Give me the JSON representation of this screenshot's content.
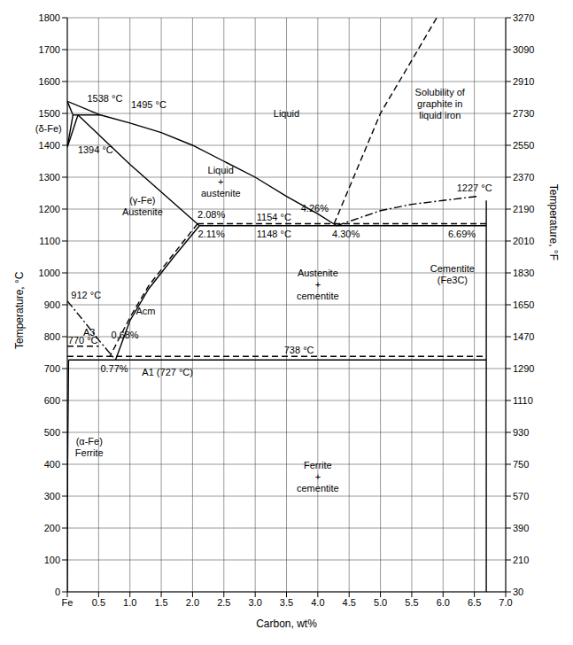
{
  "chart_data": {
    "type": "line",
    "xlabel": "Carbon, wt%",
    "ylabel": "Temperature, °C",
    "y2label": "Temperature, °F",
    "grid": true,
    "xlim": [
      0,
      7
    ],
    "xticks": [
      {
        "value": 0,
        "label": "Fe"
      },
      0.5,
      {
        "value": 1,
        "label": "1.0"
      },
      1.5,
      {
        "value": 2,
        "label": "2.0"
      },
      2.5,
      {
        "value": 3,
        "label": "3.0"
      },
      3.5,
      {
        "value": 4,
        "label": "4.0"
      },
      4.5,
      {
        "value": 5,
        "label": "5.0"
      },
      5.5,
      {
        "value": 6,
        "label": "6.0"
      },
      6.5,
      {
        "value": 7,
        "label": "7.0"
      }
    ],
    "ylim": [
      0,
      1800
    ],
    "yticks": [
      0,
      100,
      200,
      300,
      400,
      500,
      600,
      700,
      800,
      900,
      1000,
      1100,
      1200,
      1300,
      1400,
      1500,
      1600,
      1700,
      1800
    ],
    "y2lim": [
      30,
      3270
    ],
    "y2ticks": [
      30,
      210,
      390,
      570,
      750,
      930,
      1110,
      1290,
      1470,
      1650,
      1830,
      2010,
      2190,
      2370,
      2550,
      2730,
      2910,
      3090,
      3270
    ],
    "series": [
      {
        "color": "#000000",
        "line_style": "solid",
        "x": [
          0,
          0.53,
          1.0,
          1.5,
          2.0,
          2.5,
          3.0,
          3.5,
          4.0,
          4.3
        ],
        "values": [
          1538,
          1495,
          1470,
          1440,
          1400,
          1350,
          1300,
          1240,
          1185,
          1148
        ]
      },
      {
        "color": "#000000",
        "line_style": "solid",
        "x": [
          0,
          0.09
        ],
        "values": [
          1538,
          1495
        ]
      },
      {
        "color": "#000000",
        "line_style": "solid",
        "x": [
          0.09,
          0.53
        ],
        "values": [
          1495,
          1495
        ]
      },
      {
        "color": "#000000",
        "line_style": "solid",
        "x": [
          0,
          0.09
        ],
        "values": [
          1394,
          1495
        ]
      },
      {
        "color": "#000000",
        "line_style": "solid",
        "x": [
          0,
          0.17
        ],
        "values": [
          1394,
          1495
        ]
      },
      {
        "color": "#000000",
        "line_style": "solid",
        "x": [
          0.17,
          1.0,
          2.11
        ],
        "values": [
          1495,
          1340,
          1148
        ]
      },
      {
        "color": "#000000",
        "line_style": "solid",
        "x": [
          2.11,
          6.69
        ],
        "values": [
          1148,
          1148
        ]
      },
      {
        "color": "#000000",
        "line_style": "dashed",
        "x": [
          2.08,
          6.69
        ],
        "values": [
          1154,
          1154
        ]
      },
      {
        "color": "#000000",
        "line_style": "solid",
        "x": [
          2.11,
          1.7,
          1.3,
          1.0,
          0.77
        ],
        "values": [
          1148,
          1050,
          950,
          850,
          727
        ]
      },
      {
        "color": "#000000",
        "line_style": "dashed",
        "x": [
          2.08,
          1.7,
          1.3,
          1.0,
          0.68
        ],
        "values": [
          1154,
          1060,
          960,
          860,
          738
        ]
      },
      {
        "color": "#000000",
        "line_style": "dashdot",
        "x": [
          0,
          0.3,
          0.5,
          0.77
        ],
        "values": [
          912,
          840,
          790,
          727
        ]
      },
      {
        "color": "#000000",
        "line_style": "dashed",
        "x": [
          0,
          0.5
        ],
        "values": [
          770,
          770
        ]
      },
      {
        "color": "#000000",
        "line_style": "solid",
        "x": [
          0.02,
          6.69
        ],
        "values": [
          727,
          727
        ]
      },
      {
        "color": "#000000",
        "line_style": "dashed",
        "x": [
          0,
          6.69
        ],
        "values": [
          738,
          738
        ]
      },
      {
        "color": "#000000",
        "line_style": "solid",
        "x": [
          0.02,
          0.005,
          0
        ],
        "values": [
          727,
          400,
          0
        ]
      },
      {
        "color": "#000000",
        "line_style": "solid",
        "x": [
          6.69,
          6.69
        ],
        "values": [
          0,
          1227
        ]
      },
      {
        "color": "#000000",
        "line_style": "dashed",
        "x": [
          4.26,
          5.0,
          5.6,
          5.9
        ],
        "values": [
          1154,
          1500,
          1700,
          1800
        ]
      },
      {
        "color": "#000000",
        "line_style": "dashdot",
        "x": [
          4.3,
          5.0,
          5.5,
          6.0,
          6.55
        ],
        "values": [
          1148,
          1195,
          1215,
          1227,
          1240
        ]
      }
    ],
    "annotations": [
      {
        "text": "Liquid",
        "x": 3.5,
        "y": 1500
      },
      {
        "text": "Liquid\n+\naustenite",
        "x": 2.45,
        "y": 1285
      },
      {
        "text": "(γ-Fe)\nAustenite",
        "x": 1.2,
        "y": 1210
      },
      {
        "text": "(δ-Fe)",
        "x": -0.3,
        "y": 1452
      },
      {
        "text": "1538 °C",
        "x": 0.6,
        "y": 1547
      },
      {
        "text": "1495 °C",
        "x": 1.3,
        "y": 1527
      },
      {
        "text": "1394 °C",
        "x": 0.45,
        "y": 1385
      },
      {
        "text": "2.08%",
        "x": 2.3,
        "y": 1182
      },
      {
        "text": "2.11%",
        "x": 2.3,
        "y": 1122
      },
      {
        "text": "1154 °C",
        "x": 3.3,
        "y": 1176
      },
      {
        "text": "1148 °C",
        "x": 3.3,
        "y": 1122
      },
      {
        "text": "4.26%",
        "x": 3.95,
        "y": 1202
      },
      {
        "text": "4.30%",
        "x": 4.45,
        "y": 1122
      },
      {
        "text": "6.69%",
        "x": 6.3,
        "y": 1122
      },
      {
        "text": "1227 °C",
        "x": 6.5,
        "y": 1268
      },
      {
        "text": "Solubility of\ngraphite in\nliquid iron",
        "x": 5.95,
        "y": 1530
      },
      {
        "text": "Austenite\n+\ncementite",
        "x": 4.0,
        "y": 965
      },
      {
        "text": "Cementite\n(Fe3C)",
        "x": 6.15,
        "y": 995
      },
      {
        "text": "Ferrite\n+\ncementite",
        "x": 4.0,
        "y": 360
      },
      {
        "text": "(α-Fe)\nFerrite",
        "x": 0.35,
        "y": 455
      },
      {
        "text": "912 °C",
        "x": 0.3,
        "y": 930
      },
      {
        "text": "A3",
        "x": 0.35,
        "y": 815
      },
      {
        "text": "0.68%",
        "x": 0.92,
        "y": 805
      },
      {
        "text": "Acm",
        "x": 1.25,
        "y": 880
      },
      {
        "text": "770 °C",
        "x": 0.25,
        "y": 788
      },
      {
        "text": "0.77%",
        "x": 0.75,
        "y": 700
      },
      {
        "text": "A1 (727 °C)",
        "x": 1.6,
        "y": 688
      },
      {
        "text": "738 °C",
        "x": 3.7,
        "y": 757
      }
    ]
  }
}
